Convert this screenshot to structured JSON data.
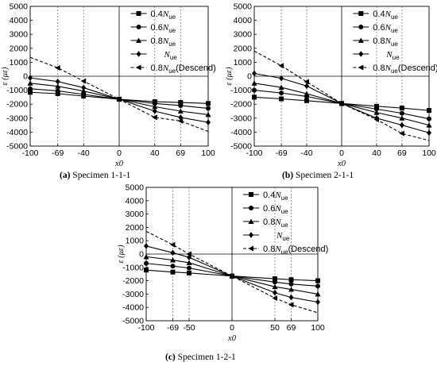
{
  "figure": {
    "panels": [
      {
        "caption_label": "(a)",
        "caption_text": " Specimen 1-1-1"
      },
      {
        "caption_label": "(b)",
        "caption_text": " Specimen 2-1-1"
      },
      {
        "caption_label": "(c)",
        "caption_text": " Specimen 1-2-1"
      }
    ]
  },
  "chart_data": [
    {
      "type": "line",
      "caption": "(a) Specimen 1-1-1",
      "xlabel": "x0",
      "ylabel": "ε (με)",
      "xlim": [
        -100,
        100
      ],
      "ylim": [
        -5000,
        5000
      ],
      "xticks": [
        -100,
        -69,
        -40,
        0,
        40,
        69,
        100
      ],
      "yticks": [
        5000,
        4000,
        3000,
        2000,
        1000,
        0,
        -1000,
        -2000,
        -3000,
        -4000,
        -5000
      ],
      "reference_lines_x": [
        -69,
        -40,
        40,
        69
      ],
      "legend_position": "top-right",
      "x": [
        -100,
        -69,
        -40,
        0,
        40,
        69,
        100
      ],
      "series": [
        {
          "name": "0.4Nue",
          "marker": "square",
          "dashed": false,
          "values": [
            -1150,
            -1250,
            -1420,
            -1650,
            -1820,
            -1880,
            -1950
          ]
        },
        {
          "name": "0.6Nue",
          "marker": "circle",
          "dashed": false,
          "values": [
            -900,
            -1050,
            -1300,
            -1650,
            -1950,
            -2100,
            -2300
          ]
        },
        {
          "name": "0.8Nue",
          "marker": "triangle-up",
          "dashed": false,
          "values": [
            -500,
            -720,
            -1060,
            -1650,
            -2180,
            -2500,
            -2750
          ]
        },
        {
          "name": "Nue",
          "marker": "diamond",
          "dashed": false,
          "values": [
            -120,
            -380,
            -820,
            -1650,
            -2500,
            -2950,
            -3300
          ]
        },
        {
          "name": "0.8Nue(Descend)",
          "marker": "triangle-left",
          "dashed": true,
          "values": [
            1350,
            600,
            -350,
            -1650,
            -2950,
            -3200,
            -3950
          ]
        }
      ]
    },
    {
      "type": "line",
      "caption": "(b) Specimen 2-1-1",
      "xlabel": "x0",
      "ylabel": "ε (με)",
      "xlim": [
        -100,
        100
      ],
      "ylim": [
        -5000,
        5000
      ],
      "xticks": [
        -100,
        -69,
        -40,
        0,
        40,
        69,
        100
      ],
      "yticks": [
        5000,
        4000,
        3000,
        2000,
        1000,
        0,
        -1000,
        -2000,
        -3000,
        -4000,
        -5000
      ],
      "reference_lines_x": [
        -69,
        -40,
        40,
        69
      ],
      "legend_position": "top-right",
      "x": [
        -100,
        -69,
        -40,
        0,
        40,
        69,
        100
      ],
      "series": [
        {
          "name": "0.4Nue",
          "marker": "square",
          "dashed": false,
          "values": [
            -1500,
            -1620,
            -1750,
            -1950,
            -2150,
            -2280,
            -2450
          ]
        },
        {
          "name": "0.6Nue",
          "marker": "circle",
          "dashed": false,
          "values": [
            -1000,
            -1200,
            -1450,
            -1950,
            -2350,
            -2650,
            -3050
          ]
        },
        {
          "name": "0.8Nue",
          "marker": "triangle-up",
          "dashed": false,
          "values": [
            -500,
            -800,
            -1250,
            -1950,
            -2600,
            -3000,
            -3500
          ]
        },
        {
          "name": "Nue",
          "marker": "diamond",
          "dashed": false,
          "values": [
            200,
            -150,
            -700,
            -1950,
            -3000,
            -3500,
            -4050
          ]
        },
        {
          "name": "0.8Nue(Descend)",
          "marker": "triangle-left",
          "dashed": true,
          "values": [
            1800,
            750,
            -400,
            -1950,
            -3100,
            -4100,
            -4600
          ]
        }
      ]
    },
    {
      "type": "line",
      "caption": "(c) Specimen 1-2-1",
      "xlabel": "x0",
      "ylabel": "ε (με)",
      "xlim": [
        -100,
        100
      ],
      "ylim": [
        -5000,
        5000
      ],
      "xticks": [
        -100,
        -69,
        -50,
        0,
        50,
        69,
        100
      ],
      "yticks": [
        5000,
        4000,
        3000,
        2000,
        1000,
        0,
        -1000,
        -2000,
        -3000,
        -4000,
        -5000
      ],
      "reference_lines_x": [
        -69,
        -50,
        50,
        69
      ],
      "legend_position": "top-right",
      "x": [
        -100,
        -69,
        -50,
        0,
        50,
        69,
        100
      ],
      "series": [
        {
          "name": "0.4Nue",
          "marker": "square",
          "dashed": false,
          "values": [
            -1200,
            -1350,
            -1420,
            -1650,
            -1850,
            -1920,
            -2000
          ]
        },
        {
          "name": "0.6Nue",
          "marker": "circle",
          "dashed": false,
          "values": [
            -700,
            -900,
            -1050,
            -1650,
            -2100,
            -2250,
            -2400
          ]
        },
        {
          "name": "0.8Nue",
          "marker": "triangle-up",
          "dashed": false,
          "values": [
            -200,
            -450,
            -650,
            -1650,
            -2450,
            -2650,
            -3000
          ]
        },
        {
          "name": "Nue",
          "marker": "diamond",
          "dashed": false,
          "values": [
            600,
            100,
            -250,
            -1650,
            -2900,
            -3250,
            -3600
          ]
        },
        {
          "name": "0.8Nue(Descend)",
          "marker": "triangle-left",
          "dashed": true,
          "values": [
            1700,
            700,
            0,
            -1650,
            -3300,
            -3800,
            -4400
          ]
        }
      ]
    }
  ]
}
